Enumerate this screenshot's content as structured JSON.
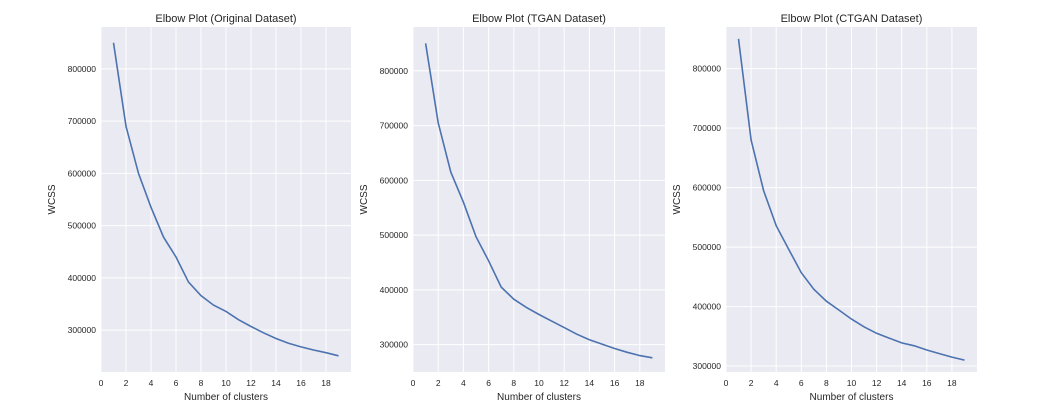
{
  "chart_data": [
    {
      "type": "line",
      "title": "Elbow Plot (Original Dataset)",
      "xlabel": "Number of clusters",
      "ylabel": "WCSS",
      "xlim": [
        0,
        20
      ],
      "ylim": [
        220000,
        880000
      ],
      "xticks": [
        0,
        2,
        4,
        6,
        8,
        10,
        12,
        14,
        16,
        18
      ],
      "yticks": [
        300000,
        400000,
        500000,
        600000,
        700000,
        800000
      ],
      "grid": true,
      "line_color": "#4c72b0",
      "background": "#eaeaf2",
      "x": [
        1,
        2,
        3,
        4,
        5,
        6,
        7,
        8,
        9,
        10,
        11,
        12,
        13,
        14,
        15,
        16,
        17,
        18,
        19
      ],
      "values": [
        850000,
        690000,
        600000,
        535000,
        478000,
        440000,
        392000,
        366000,
        348000,
        336000,
        320000,
        307000,
        295000,
        284000,
        275000,
        268000,
        262000,
        257000,
        251000
      ]
    },
    {
      "type": "line",
      "title": "Elbow Plot (TGAN Dataset)",
      "xlabel": "Number of clusters",
      "ylabel": "WCSS",
      "xlim": [
        0,
        20
      ],
      "ylim": [
        250000,
        880000
      ],
      "xticks": [
        0,
        2,
        4,
        6,
        8,
        10,
        12,
        14,
        16,
        18
      ],
      "yticks": [
        300000,
        400000,
        500000,
        600000,
        700000,
        800000
      ],
      "grid": true,
      "line_color": "#4c72b0",
      "background": "#eaeaf2",
      "x": [
        1,
        2,
        3,
        4,
        5,
        6,
        7,
        8,
        9,
        10,
        11,
        12,
        13,
        14,
        15,
        16,
        17,
        18,
        19
      ],
      "values": [
        850000,
        705000,
        615000,
        560000,
        497000,
        453000,
        405000,
        383000,
        368000,
        355000,
        343000,
        331000,
        319000,
        309000,
        301000,
        293000,
        286000,
        280000,
        276000
      ]
    },
    {
      "type": "line",
      "title": "Elbow Plot (CTGAN Dataset)",
      "xlabel": "Number of clusters",
      "ylabel": "WCSS",
      "xlim": [
        0,
        20
      ],
      "ylim": [
        290000,
        870000
      ],
      "xticks": [
        0,
        2,
        4,
        6,
        8,
        10,
        12,
        14,
        16,
        18
      ],
      "yticks": [
        300000,
        400000,
        500000,
        600000,
        700000,
        800000
      ],
      "grid": true,
      "line_color": "#4c72b0",
      "background": "#eaeaf2",
      "x": [
        1,
        2,
        3,
        4,
        5,
        6,
        7,
        8,
        9,
        10,
        11,
        12,
        13,
        14,
        15,
        16,
        17,
        18,
        19
      ],
      "values": [
        850000,
        680000,
        595000,
        536000,
        496000,
        457000,
        429000,
        409000,
        394000,
        379000,
        366000,
        355000,
        347000,
        339000,
        334000,
        327000,
        321000,
        315000,
        310000
      ]
    }
  ]
}
